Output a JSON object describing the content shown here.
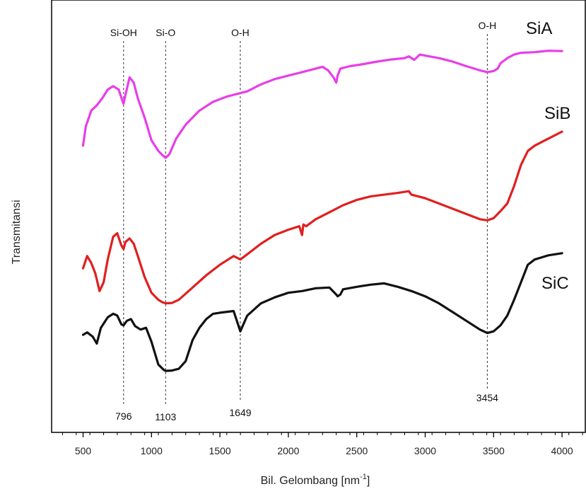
{
  "chart_data": {
    "type": "line",
    "title": "",
    "xlabel": "Bil. Gelombang [nm",
    "xlabel_sup": "-1",
    "xlabel_suffix": "]",
    "ylabel": "Transmitansi",
    "xlim": [
      270,
      4170
    ],
    "x_ticks": [
      500,
      1000,
      1500,
      2000,
      2500,
      3000,
      3500,
      4000
    ],
    "x_tick_labels": [
      "500",
      "1000",
      "1500",
      "2000",
      "2500",
      "3000",
      "3500",
      "4000"
    ],
    "ylim": [
      0,
      100
    ],
    "y_ticks_visible": false,
    "grid": false,
    "colors": {
      "SiA": "#e83ee8",
      "SiB": "#e01f1f",
      "SiC": "#111111",
      "axis": "#000000"
    },
    "series": [
      {
        "name": "SiA",
        "x": [
          500,
          520,
          560,
          600,
          640,
          680,
          720,
          760,
          790,
          796,
          810,
          840,
          870,
          900,
          950,
          1000,
          1050,
          1080,
          1103,
          1130,
          1180,
          1250,
          1350,
          1450,
          1550,
          1649,
          1700,
          1800,
          1900,
          2000,
          2100,
          2200,
          2250,
          2290,
          2330,
          2350,
          2360,
          2380,
          2450,
          2550,
          2650,
          2750,
          2850,
          2880,
          2920,
          2960,
          3000,
          3100,
          3200,
          3300,
          3400,
          3454,
          3500,
          3530,
          3550,
          3600,
          3650,
          3700,
          3800,
          3900,
          4000
        ],
        "y": [
          66.5,
          72,
          76.5,
          78,
          80,
          82.5,
          83.5,
          82.5,
          79,
          78.5,
          81,
          86,
          84.5,
          80,
          74.5,
          68,
          65,
          63.8,
          63,
          64,
          68.5,
          72.5,
          76.5,
          79,
          80.5,
          81.5,
          82,
          84,
          85.5,
          86.5,
          87.5,
          88.5,
          89,
          88,
          86,
          84.5,
          86.5,
          88.5,
          89.2,
          89.8,
          90.5,
          91.1,
          91.5,
          92,
          91,
          92.5,
          92.2,
          91.5,
          90.5,
          89.2,
          88,
          87.5,
          87.8,
          88.5,
          90,
          91.5,
          92.5,
          93,
          93.2,
          93.6,
          93.5
        ]
      },
      {
        "name": "SiB",
        "x": [
          500,
          530,
          560,
          590,
          620,
          650,
          680,
          720,
          750,
          780,
          796,
          810,
          840,
          870,
          900,
          950,
          1000,
          1050,
          1080,
          1103,
          1150,
          1200,
          1300,
          1400,
          1500,
          1600,
          1649,
          1700,
          1800,
          1900,
          2000,
          2080,
          2100,
          2110,
          2130,
          2200,
          2300,
          2400,
          2500,
          2600,
          2700,
          2800,
          2880,
          2900,
          2950,
          3000,
          3100,
          3200,
          3300,
          3400,
          3454,
          3500,
          3550,
          3600,
          3650,
          3700,
          3750,
          3800,
          3900,
          4000
        ],
        "y": [
          31.5,
          35,
          33,
          30,
          25,
          27.5,
          34,
          40.5,
          41.5,
          38,
          37,
          39,
          40,
          38.5,
          35,
          29,
          24.5,
          22.5,
          21.8,
          21.5,
          21.6,
          22.5,
          26,
          29.5,
          32.5,
          35,
          34,
          35.5,
          38.5,
          41,
          42.5,
          43.5,
          41,
          44,
          43.5,
          45.5,
          47.5,
          49.5,
          51,
          52,
          52.5,
          53,
          53.5,
          52.5,
          52,
          51.5,
          50,
          48.5,
          47,
          45.5,
          45.2,
          45.8,
          47.8,
          50,
          55,
          61,
          65,
          66.5,
          68.5,
          70.5
        ]
      },
      {
        "name": "SiC",
        "x": [
          500,
          530,
          570,
          600,
          630,
          680,
          720,
          750,
          780,
          796,
          820,
          850,
          880,
          920,
          960,
          1000,
          1050,
          1090,
          1103,
          1150,
          1200,
          1250,
          1300,
          1350,
          1400,
          1450,
          1500,
          1600,
          1649,
          1700,
          1800,
          1900,
          2000,
          2100,
          2200,
          2300,
          2350,
          2360,
          2380,
          2400,
          2500,
          2600,
          2700,
          2800,
          2900,
          3000,
          3100,
          3200,
          3300,
          3400,
          3454,
          3500,
          3550,
          3600,
          3650,
          3700,
          3750,
          3800,
          3900,
          4000
        ],
        "y": [
          12.5,
          13.2,
          12,
          10,
          14.5,
          17.5,
          18.5,
          18,
          15.5,
          15.2,
          16.5,
          17,
          15,
          14,
          14.5,
          10.5,
          4,
          2.5,
          2.2,
          2.3,
          2.8,
          5,
          11,
          14.5,
          17,
          18.5,
          18.8,
          19.3,
          13.5,
          18,
          21.5,
          23.2,
          24.5,
          25,
          25.8,
          26,
          24,
          23.5,
          24,
          25.5,
          26.2,
          26.8,
          27.2,
          26.2,
          25,
          23.5,
          21.5,
          19,
          16.5,
          14,
          13,
          13.5,
          15.2,
          18,
          22.5,
          27.5,
          32.5,
          34,
          35.2,
          35.8
        ]
      }
    ],
    "vlines": [
      {
        "x": 796,
        "top_label": "Si-OH",
        "bottom_label": "796"
      },
      {
        "x": 1103,
        "top_label": "Si-O",
        "bottom_label": "1103"
      },
      {
        "x": 1649,
        "top_label": "O-H",
        "bottom_label": "1649"
      },
      {
        "x": 3454,
        "top_label": "O-H",
        "bottom_label": "3454"
      }
    ]
  }
}
